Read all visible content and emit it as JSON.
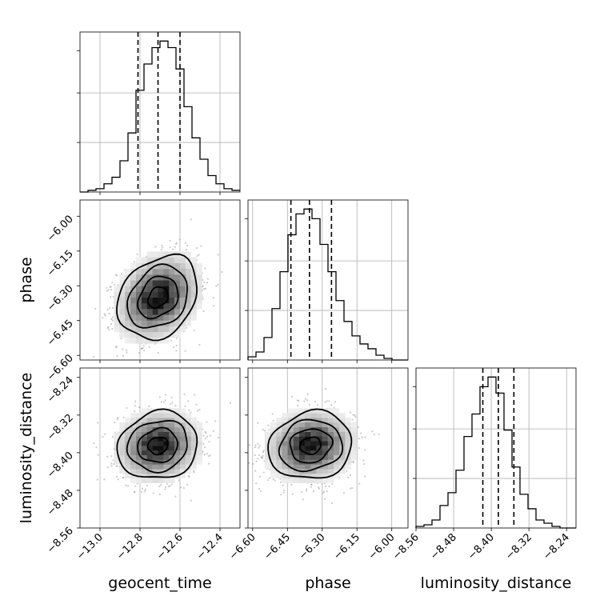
{
  "chart_data": {
    "type": "corner",
    "parameters": [
      {
        "name": "geocent_time",
        "range": [
          -13.1,
          -12.3
        ],
        "ticks": [
          -13.0,
          -12.8,
          -12.6,
          -12.4
        ],
        "tick_labels": [
          "−13.0",
          "−12.8",
          "−12.6",
          "−12.4"
        ],
        "quantiles": [
          -12.81,
          -12.71,
          -12.6
        ],
        "mean": -12.71,
        "sd": 0.1
      },
      {
        "name": "phase",
        "range": [
          -6.62,
          -5.93
        ],
        "ticks": [
          -6.6,
          -6.45,
          -6.3,
          -6.15,
          -6.0
        ],
        "tick_labels": [
          "−6.60",
          "−6.45",
          "−6.30",
          "−6.15",
          "−6.00"
        ],
        "quantiles": [
          -6.435,
          -6.355,
          -6.26
        ],
        "mean": -6.35,
        "sd": 0.09
      },
      {
        "name": "luminosity_distance",
        "range": [
          -8.56,
          -8.22
        ],
        "ticks": [
          -8.56,
          -8.48,
          -8.4,
          -8.32,
          -8.24
        ],
        "tick_labels": [
          "−8.56",
          "−8.48",
          "−8.40",
          "−8.32",
          "−8.24"
        ],
        "quantiles": [
          -8.418,
          -8.385,
          -8.352
        ],
        "mean": -8.385,
        "sd": 0.036
      }
    ],
    "histograms": [
      {
        "parameter": "geocent_time",
        "bin_start": -13.1,
        "bin_width": 0.04,
        "counts": [
          0,
          1,
          2,
          5,
          9,
          19,
          36,
          62,
          78,
          88,
          92,
          88,
          75,
          52,
          33,
          20,
          10,
          5,
          2,
          1
        ]
      },
      {
        "parameter": "phase",
        "bin_start": -6.62,
        "bin_width": 0.0345,
        "counts": [
          2,
          5,
          14,
          32,
          55,
          78,
          91,
          94,
          88,
          72,
          55,
          37,
          24,
          15,
          10,
          7,
          3,
          1,
          0,
          0
        ]
      },
      {
        "parameter": "luminosity_distance",
        "bin_start": -8.56,
        "bin_width": 0.017,
        "counts": [
          1,
          2,
          5,
          14,
          22,
          36,
          57,
          71,
          88,
          94,
          84,
          61,
          38,
          21,
          12,
          5,
          3,
          1,
          0,
          0
        ]
      }
    ],
    "pairs": [
      {
        "x": "geocent_time",
        "y": "phase",
        "center": [
          -12.71,
          -6.35
        ],
        "spread": [
          0.1,
          0.09
        ],
        "correlation": 0.25
      },
      {
        "x": "geocent_time",
        "y": "luminosity_distance",
        "center": [
          -12.71,
          -8.385
        ],
        "spread": [
          0.1,
          0.036
        ],
        "correlation": 0.1
      },
      {
        "x": "phase",
        "y": "luminosity_distance",
        "center": [
          -6.35,
          -8.385
        ],
        "spread": [
          0.09,
          0.036
        ],
        "correlation": 0.1
      }
    ],
    "contour_levels": [
      0.5,
      1.0,
      1.5,
      2.0
    ],
    "grid": true
  }
}
